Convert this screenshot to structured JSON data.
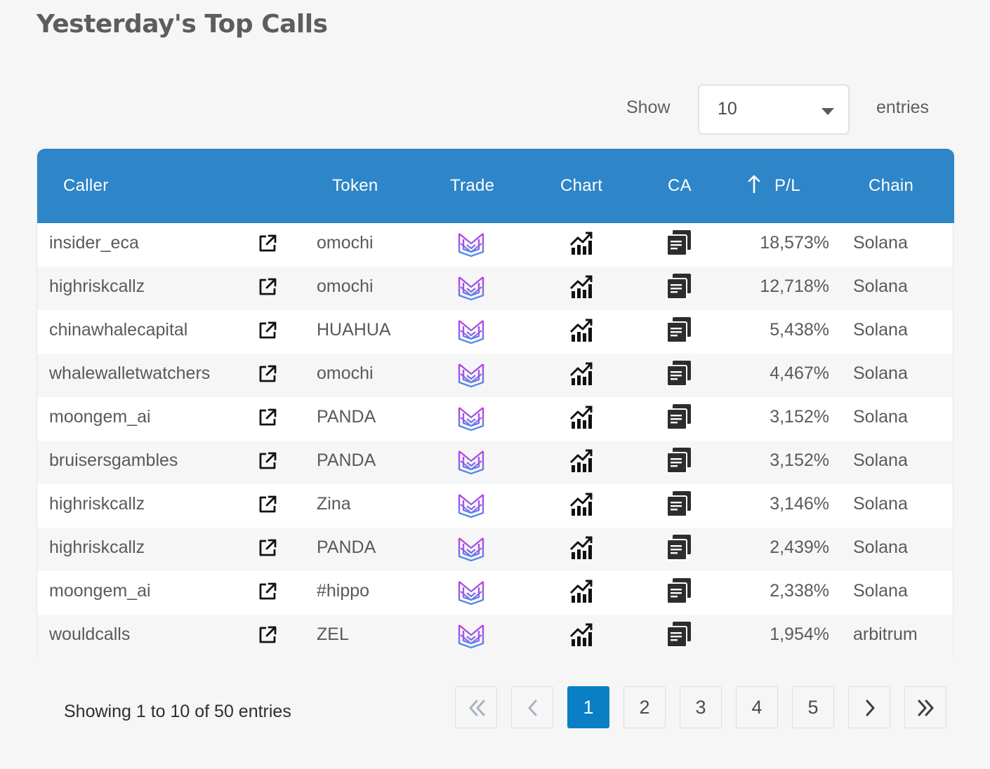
{
  "page_title": "Yesterday's Top Calls",
  "length_control": {
    "show_label": "Show",
    "selected": "10",
    "entries_label": "entries"
  },
  "table": {
    "headers": {
      "caller": "Caller",
      "token": "Token",
      "trade": "Trade",
      "chart": "Chart",
      "ca": "CA",
      "pl": "P/L",
      "chain": "Chain"
    },
    "sort": {
      "column": "P/L",
      "direction": "up-arrow"
    },
    "rows": [
      {
        "caller": "insider_eca",
        "token": "omochi",
        "pl": "18,573%",
        "chain": "Solana"
      },
      {
        "caller": "highriskcallz",
        "token": "omochi",
        "pl": "12,718%",
        "chain": "Solana"
      },
      {
        "caller": "chinawhalecapital",
        "token": "HUAHUA",
        "pl": "5,438%",
        "chain": "Solana"
      },
      {
        "caller": "whalewalletwatchers",
        "token": "omochi",
        "pl": "4,467%",
        "chain": "Solana"
      },
      {
        "caller": "moongem_ai",
        "token": "PANDA",
        "pl": "3,152%",
        "chain": "Solana"
      },
      {
        "caller": "bruisersgambles",
        "token": "PANDA",
        "pl": "3,152%",
        "chain": "Solana"
      },
      {
        "caller": "highriskcallz",
        "token": "Zina",
        "pl": "3,146%",
        "chain": "Solana"
      },
      {
        "caller": "highriskcallz",
        "token": "PANDA",
        "pl": "2,439%",
        "chain": "Solana"
      },
      {
        "caller": "moongem_ai",
        "token": "#hippo",
        "pl": "2,338%",
        "chain": "Solana"
      },
      {
        "caller": "wouldcalls",
        "token": "ZEL",
        "pl": "1,954%",
        "chain": "arbitrum"
      }
    ],
    "row_icons": {
      "external": "external-link-icon",
      "trade": "trade-logo-icon",
      "chart": "chart-icon",
      "ca": "copy-icon"
    }
  },
  "footer": {
    "info": "Showing 1 to 10 of 50 entries",
    "pages": [
      "1",
      "2",
      "3",
      "4",
      "5"
    ],
    "current_page": "1"
  },
  "colors": {
    "header_bg": "#2e85c8",
    "active_page": "#0a7fc6"
  }
}
